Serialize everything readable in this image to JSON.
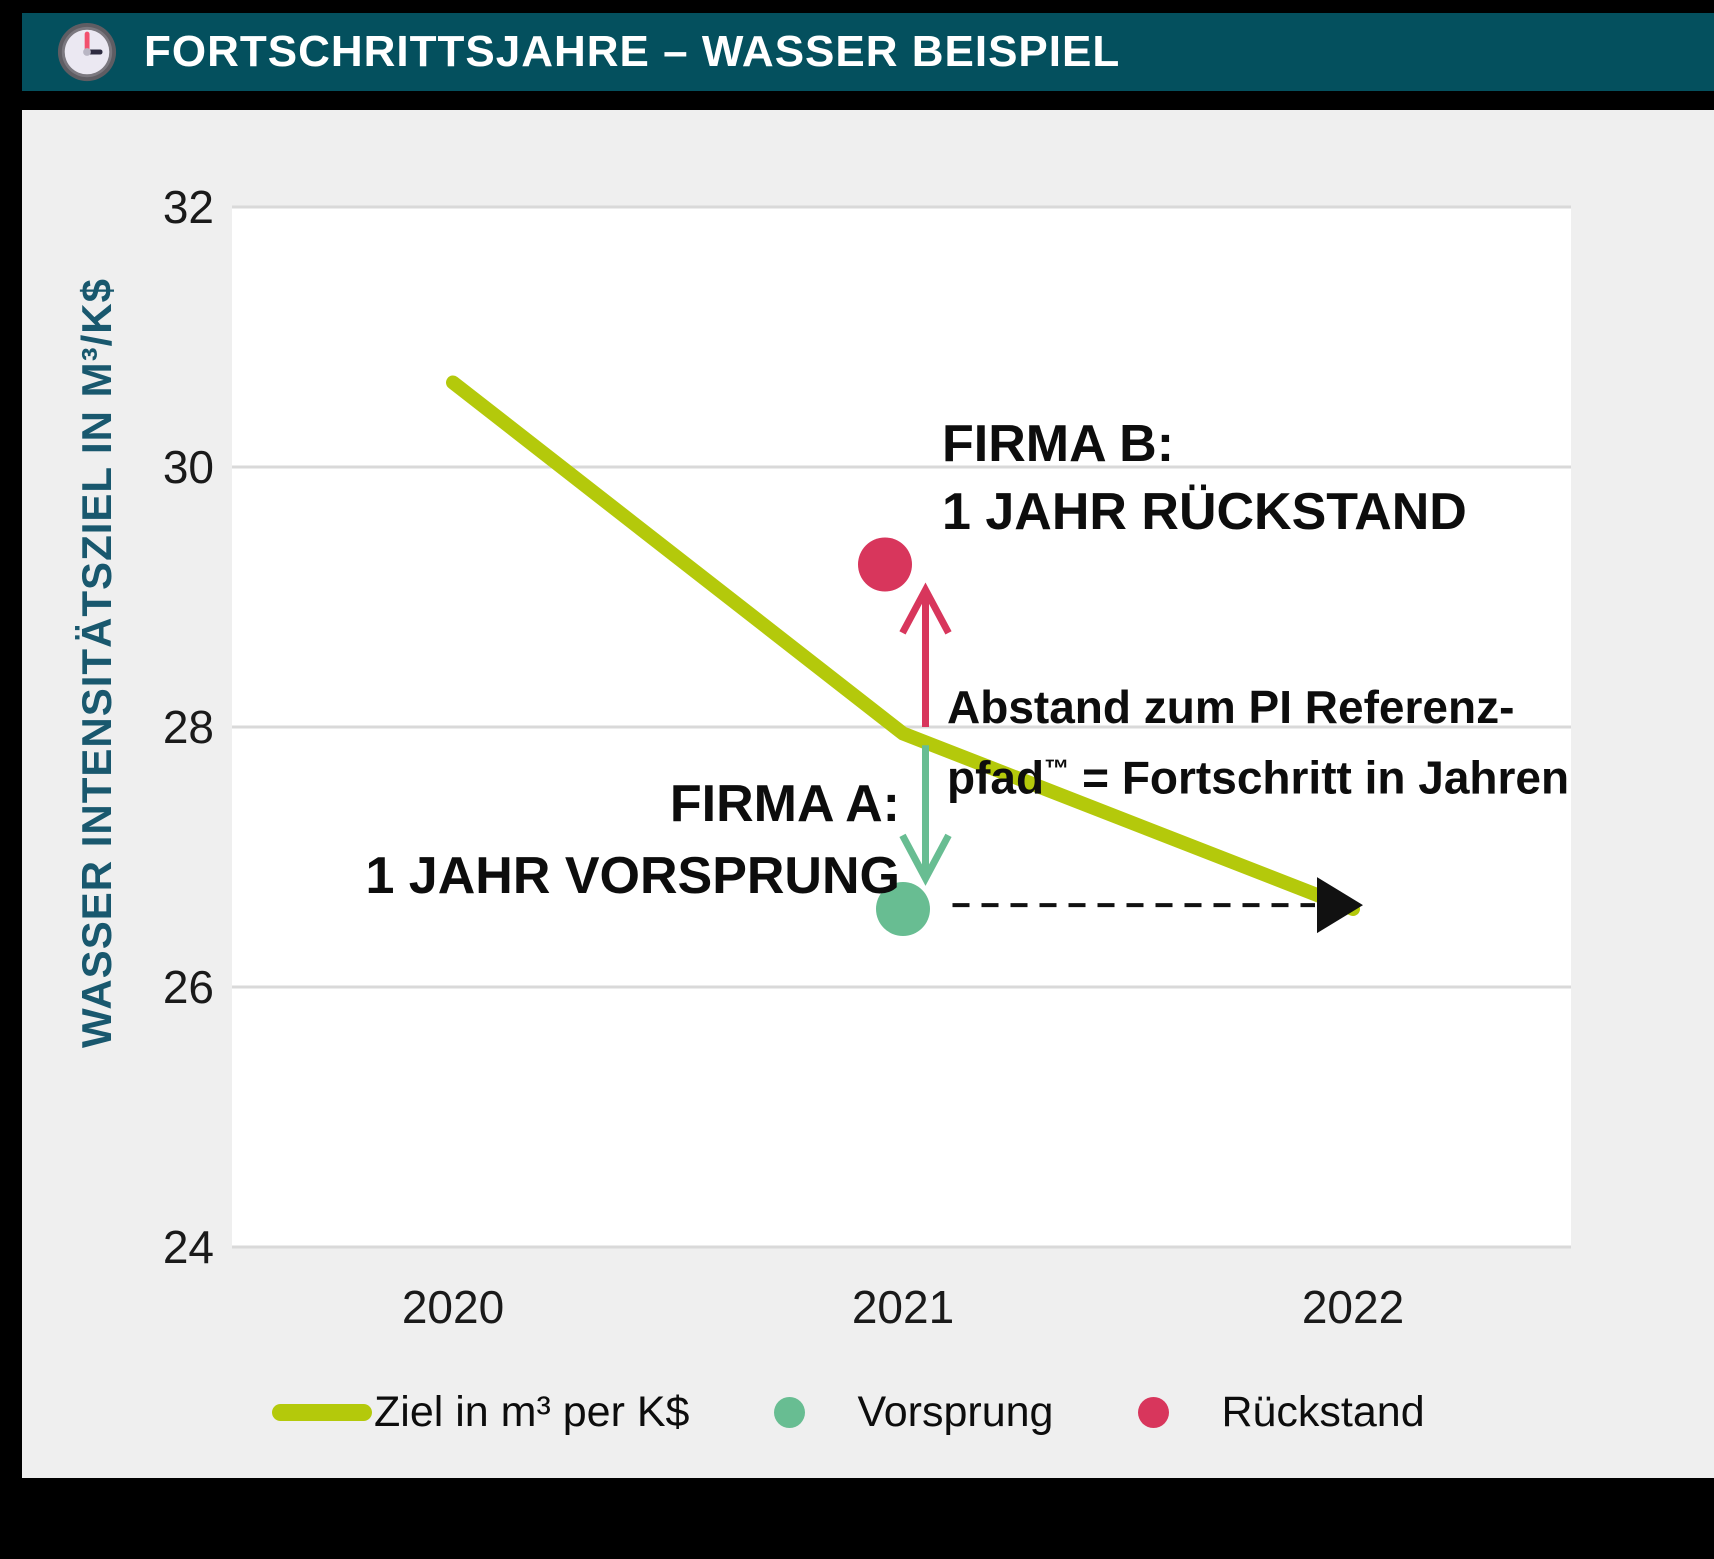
{
  "header": {
    "title": "FORTSCHRITTSJAHRE – WASSER BEISPIEL",
    "icon": "clock-icon"
  },
  "colors": {
    "header_bg": "#04505e",
    "content_bg": "#efefef",
    "plot_bg": "#ffffff",
    "grid": "#d9d9d9",
    "target_line": "#b4c90b",
    "ahead": "#68bd92",
    "behind": "#d8365c",
    "axis_title": "#19586e",
    "text": "#0d0d0d"
  },
  "chart_data": {
    "type": "line",
    "ylabel": "WASSER INTENSITÄTSZIEL IN M³/K$",
    "xlabel": "",
    "ylim": [
      24,
      32
    ],
    "y_ticks": [
      32,
      30,
      28,
      26,
      24
    ],
    "x_ticks": [
      2020,
      2021,
      2022
    ],
    "grid": "horizontal",
    "series": [
      {
        "name": "Ziel in m³ per K$",
        "color": "#b4c90b",
        "points": [
          [
            2020,
            30.65
          ],
          [
            2021,
            27.95
          ],
          [
            2022,
            26.6
          ]
        ]
      }
    ],
    "markers": [
      {
        "name": "Vorsprung",
        "company": "FIRMA A",
        "color": "#68bd92",
        "x": 2021,
        "y": 26.6
      },
      {
        "name": "Rückstand",
        "company": "FIRMA B",
        "color": "#d8365c",
        "x": 2021,
        "y": 29.25
      }
    ],
    "arrows": [
      {
        "dir": "up",
        "color": "#d8365c",
        "at": 2021.05,
        "from": 28.0,
        "to": 29.07
      },
      {
        "dir": "down",
        "color": "#68bd92",
        "at": 2021.05,
        "from": 27.86,
        "to": 26.82
      },
      {
        "dir": "right",
        "color": "#111111",
        "at": 26.63,
        "from": 2021.11,
        "to": 2022,
        "dashed": true
      }
    ]
  },
  "annotations": {
    "firma_b_line1": "FIRMA B:",
    "firma_b_line2": "1 JAHR RÜCKSTAND",
    "firma_a_line1": "FIRMA A:",
    "firma_a_line2": "1 JAHR VORSPRUNG",
    "abstand_line1": "Abstand zum PI Referenz-",
    "abstand_pfad": "pfad",
    "abstand_tm": "™",
    "abstand_line2_rest": " = Fortschritt in Jahren"
  },
  "legend": {
    "items": [
      {
        "label": "Ziel in m³ per K$",
        "swatch": "line",
        "color": "#b4c90b"
      },
      {
        "label": "Vorsprung",
        "swatch": "dot",
        "color": "#68bd92"
      },
      {
        "label": "Rückstand",
        "swatch": "dot",
        "color": "#d8365c"
      }
    ]
  }
}
